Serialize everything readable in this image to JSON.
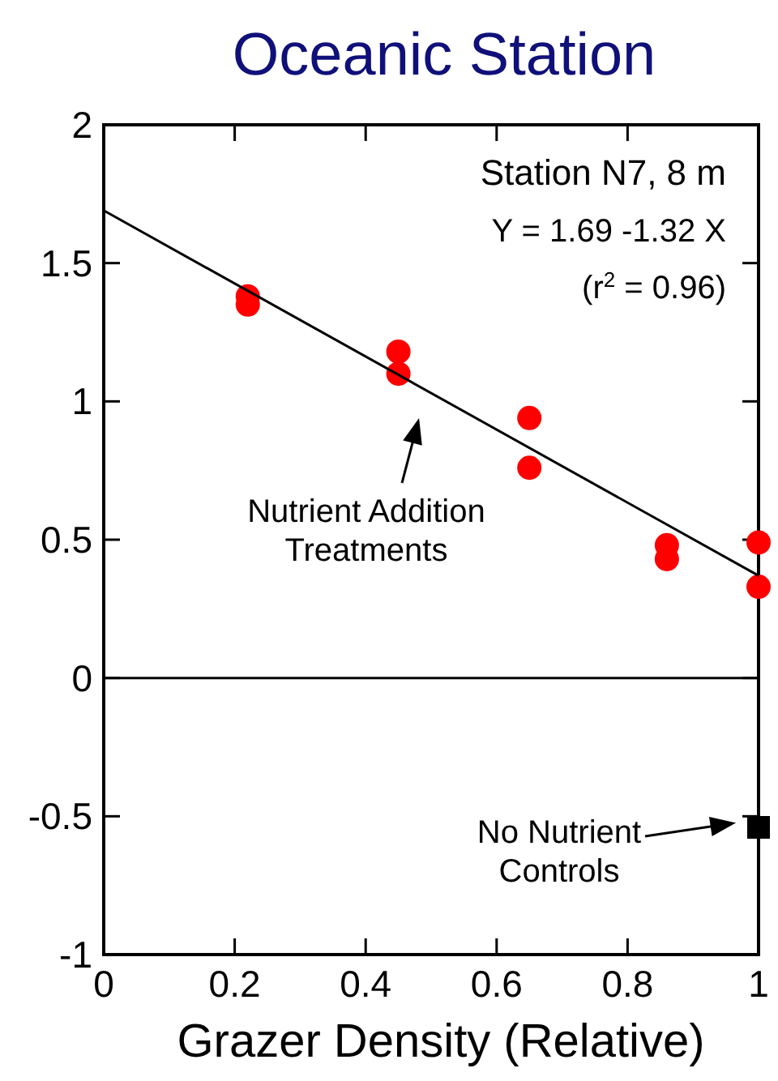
{
  "chart_data": {
    "type": "scatter",
    "title": "Oceanic Station",
    "xlabel": "Grazer Density (Relative)",
    "xlim": [
      0,
      1
    ],
    "xticks": [
      0,
      0.2,
      0.4,
      0.6,
      0.8,
      1
    ],
    "ylim": [
      -1,
      2
    ],
    "yticks": [
      -1,
      -0.5,
      0,
      0.5,
      1,
      1.5,
      2
    ],
    "grid": false,
    "series": [
      {
        "color": "#ff0000",
        "marker": "circle",
        "x": [
          0.22,
          0.22,
          0.45,
          0.45,
          0.65,
          0.65,
          0.86,
          0.86,
          1,
          1
        ],
        "values": [
          1.38,
          1.35,
          1.18,
          1.1,
          0.94,
          0.76,
          0.48,
          0.43,
          0.49,
          0.33
        ]
      },
      {
        "type": "scatter",
        "color": "#000000",
        "marker": "square",
        "x": [
          1
        ],
        "values": [
          -0.54
        ]
      },
      {
        "type": "line",
        "color": "#000000",
        "marker": "none",
        "x": [
          0,
          1
        ],
        "values": [
          1.69,
          0.37
        ]
      }
    ],
    "ref_lines": [
      {
        "axis": "y",
        "value": 0,
        "color": "#000000"
      }
    ],
    "annotations": [
      "Station N7, 8 m",
      "Y = 1.69 -1.32 X",
      "(r$^{2}$ = 0.96)",
      "Nutrient Addition\nTreatments",
      "No Nutrient\nControls"
    ]
  }
}
